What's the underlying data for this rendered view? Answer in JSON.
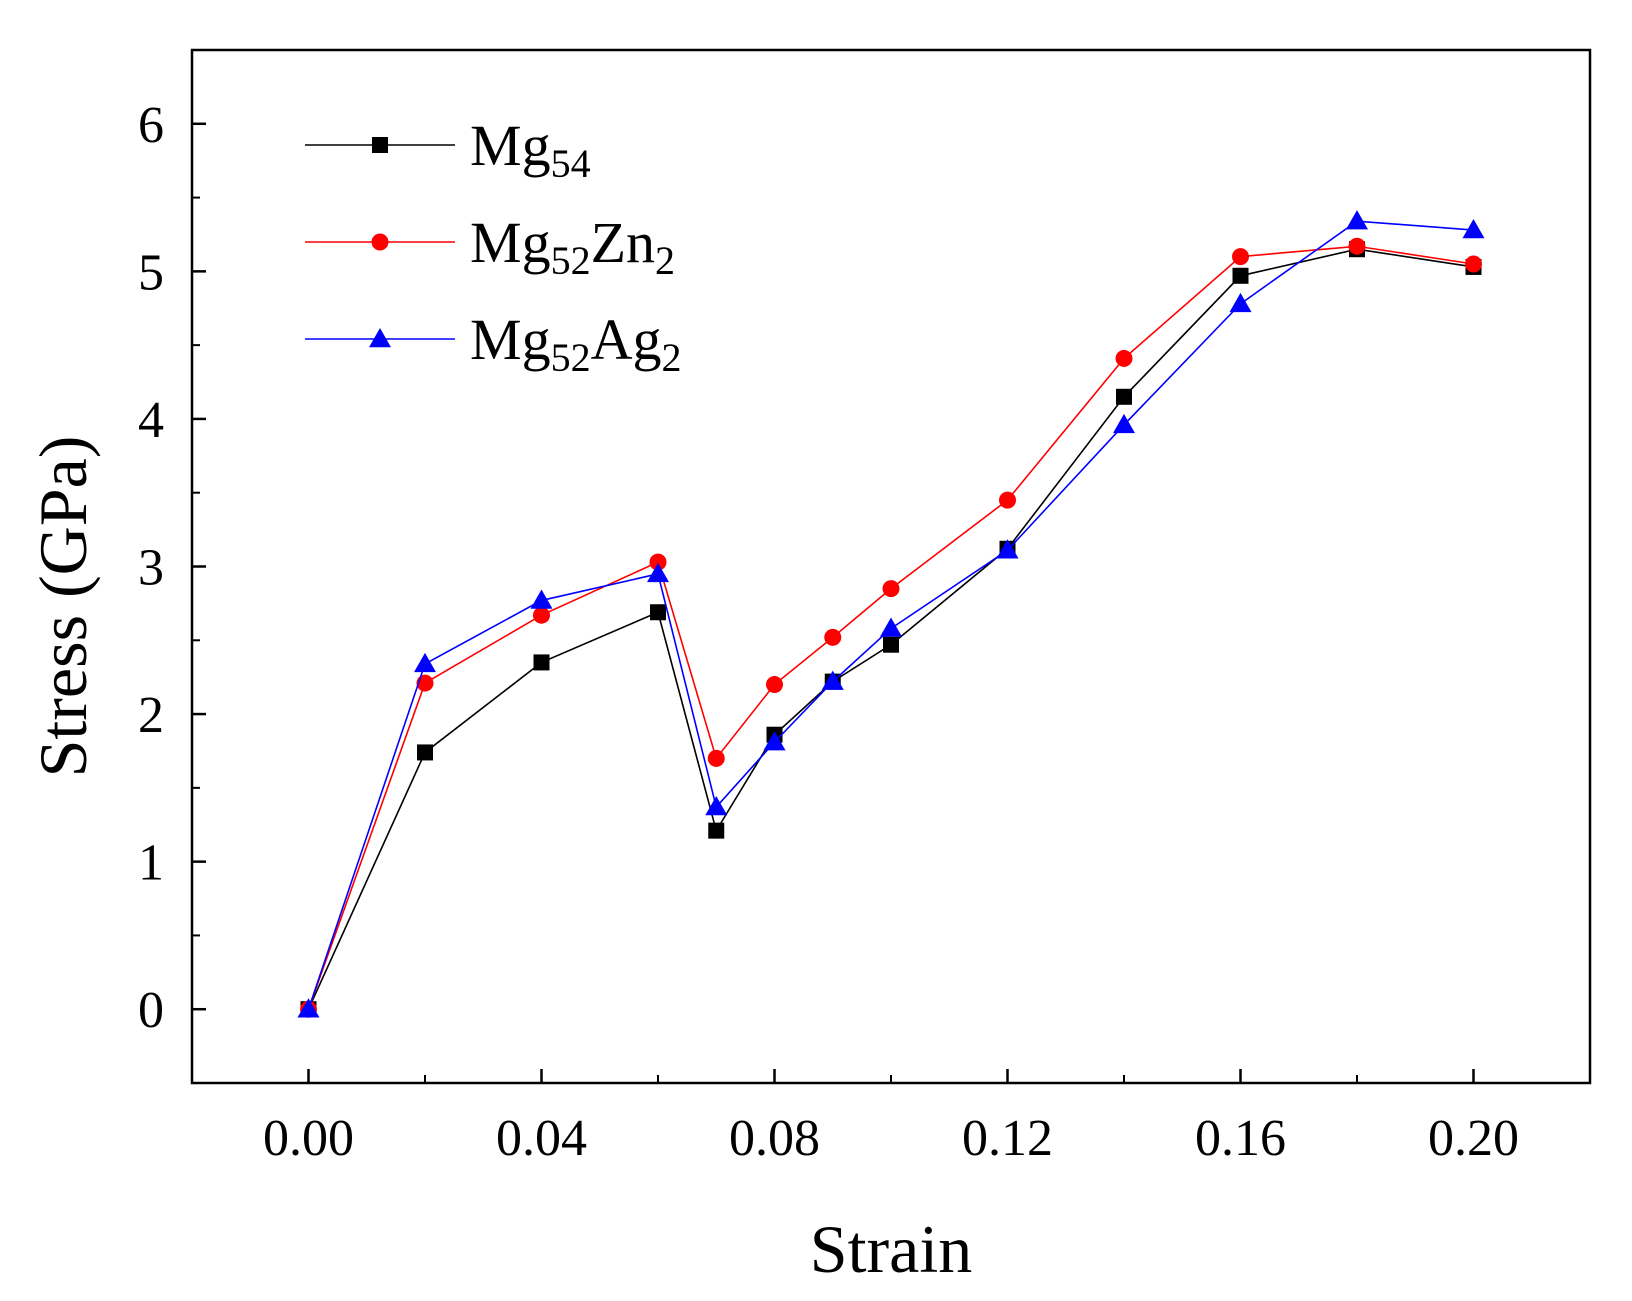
{
  "chart_data": {
    "type": "line",
    "xlabel": "Strain",
    "ylabel": "Stress (GPa)",
    "xlim": [
      -0.02,
      0.22
    ],
    "ylim": [
      -0.5,
      6.5
    ],
    "xticks": [
      0.0,
      0.04,
      0.08,
      0.12,
      0.16,
      0.2
    ],
    "xtick_labels": [
      "0.00",
      "0.04",
      "0.08",
      "0.12",
      "0.16",
      "0.20"
    ],
    "yticks": [
      0,
      1,
      2,
      3,
      4,
      5,
      6
    ],
    "ytick_labels": [
      "0",
      "1",
      "2",
      "3",
      "4",
      "5",
      "6"
    ],
    "grid": false,
    "legend_position": "top-left",
    "x": [
      0.0,
      0.02,
      0.04,
      0.06,
      0.07,
      0.08,
      0.09,
      0.1,
      0.12,
      0.14,
      0.16,
      0.18,
      0.2
    ],
    "series": [
      {
        "name": "Mg54",
        "legend_main": "Mg",
        "legend_parts": [
          {
            "t": "Mg"
          },
          {
            "t": "54",
            "sub": true
          }
        ],
        "color": "#000000",
        "marker": "square",
        "values": [
          0.0,
          1.74,
          2.35,
          2.69,
          1.21,
          1.86,
          2.22,
          2.47,
          3.12,
          4.15,
          4.97,
          5.15,
          5.03
        ]
      },
      {
        "name": "Mg52Zn2",
        "legend_parts": [
          {
            "t": "Mg"
          },
          {
            "t": "52",
            "sub": true
          },
          {
            "t": "Zn"
          },
          {
            "t": "2",
            "sub": true
          }
        ],
        "color": "#ff0000",
        "marker": "circle",
        "values": [
          0.0,
          2.21,
          2.67,
          3.03,
          1.7,
          2.2,
          2.52,
          2.85,
          3.45,
          4.41,
          5.1,
          5.17,
          5.05
        ]
      },
      {
        "name": "Mg52Ag2",
        "legend_parts": [
          {
            "t": "Mg"
          },
          {
            "t": "52",
            "sub": true
          },
          {
            "t": "Ag"
          },
          {
            "t": "2",
            "sub": true
          }
        ],
        "color": "#0000ff",
        "marker": "triangle",
        "values": [
          0.0,
          2.34,
          2.77,
          2.95,
          1.37,
          1.81,
          2.22,
          2.58,
          3.11,
          3.96,
          4.78,
          5.34,
          5.28
        ]
      }
    ]
  }
}
